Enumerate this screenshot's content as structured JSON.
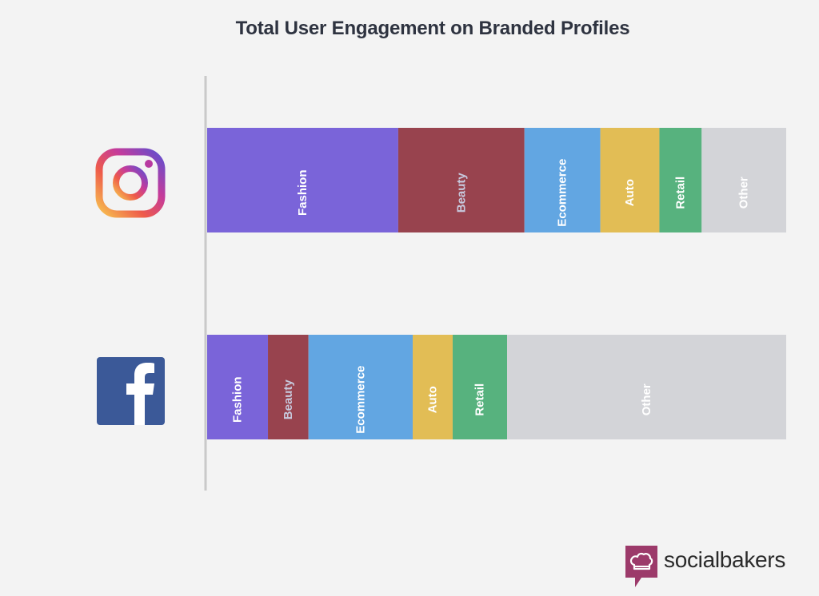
{
  "chart_data": {
    "type": "bar",
    "stacked": true,
    "orientation": "horizontal",
    "normalized": true,
    "title": "Total User Engagement on Branded Profiles",
    "xlabel": "",
    "ylabel": "",
    "xlim": [
      0,
      100
    ],
    "categories": [
      "Instagram",
      "Facebook"
    ],
    "category_icons": [
      "instagram-icon",
      "facebook-icon"
    ],
    "series": [
      {
        "name": "Fashion",
        "color": "#7a64d9",
        "label_color": "#ffffff",
        "values": [
          33,
          10.5
        ]
      },
      {
        "name": "Beauty",
        "color": "#98434e",
        "label_color": "#c7c9dd",
        "values": [
          21.8,
          7
        ]
      },
      {
        "name": "Ecommerce",
        "color": "#62a6e2",
        "label_color": "#ffffff",
        "values": [
          13.1,
          18
        ]
      },
      {
        "name": "Auto",
        "color": "#e2bd55",
        "label_color": "#ffffff",
        "values": [
          10.2,
          6.9
        ]
      },
      {
        "name": "Retail",
        "color": "#57b27e",
        "label_color": "#ffffff",
        "values": [
          7.3,
          9.4
        ]
      },
      {
        "name": "Other",
        "color": "#d3d4d8",
        "label_color": "#ffffff",
        "values": [
          14.6,
          48.2
        ]
      }
    ]
  },
  "brand": {
    "name": "socialbakers",
    "color": "#9c3a6a"
  }
}
